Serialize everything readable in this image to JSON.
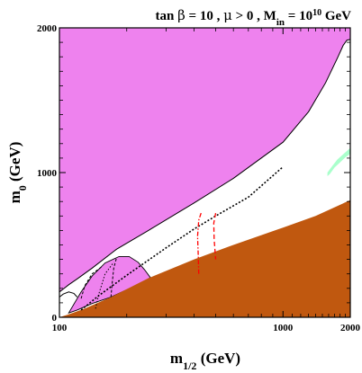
{
  "chart_data": {
    "type": "area",
    "title": {
      "prefix": "tan ",
      "beta": "β",
      "tan_beta_value": " = 10 ,  ",
      "mu": "μ",
      "mu_condition": " > 0 , M",
      "min_sub": "in",
      "min_eq": " = 10",
      "min_exp": "10",
      "unit": " GeV"
    },
    "xlabel": {
      "main": "m",
      "sub": "1/2",
      "unit": " (GeV)"
    },
    "ylabel": {
      "main": "m",
      "sub": "0",
      "unit": " (GeV)"
    },
    "xlim": [
      100,
      2000
    ],
    "ylim": [
      0,
      2000
    ],
    "x_scale": "log",
    "x_ticks": [
      {
        "value": 100,
        "label": "100"
      },
      {
        "value": 1000,
        "label": "1000"
      },
      {
        "value": 2000,
        "label": "2000"
      }
    ],
    "y_ticks": [
      {
        "value": 0,
        "label": "0"
      },
      {
        "value": 1000,
        "label": "1000"
      },
      {
        "value": 2000,
        "label": "2000"
      }
    ],
    "colors": {
      "excluded_upper": "#ee82ee",
      "excluded_lower": "#c0580f",
      "coannihilation": "#aaffcc",
      "dashed_red": "#ff0000",
      "dotted_black": "#000000"
    },
    "regions": {
      "upper_boundary": [
        [
          100,
          175
        ],
        [
          104,
          195
        ],
        [
          110,
          225
        ],
        [
          120,
          265
        ],
        [
          140,
          340
        ],
        [
          180,
          470
        ],
        [
          250,
          600
        ],
        [
          400,
          790
        ],
        [
          600,
          960
        ],
        [
          1000,
          1210
        ],
        [
          1300,
          1420
        ],
        [
          1550,
          1620
        ],
        [
          1750,
          1790
        ],
        [
          1860,
          1880
        ],
        [
          1930,
          1915
        ],
        [
          2000,
          1920
        ]
      ],
      "lower_boundary": [
        [
          100,
          0
        ],
        [
          110,
          20
        ],
        [
          130,
          60
        ],
        [
          170,
          140
        ],
        [
          250,
          270
        ],
        [
          400,
          400
        ],
        [
          600,
          500
        ],
        [
          1000,
          620
        ],
        [
          1400,
          700
        ],
        [
          2000,
          810
        ]
      ],
      "pink_lobe": [
        [
          110,
          30
        ],
        [
          125,
          175
        ],
        [
          140,
          285
        ],
        [
          160,
          375
        ],
        [
          185,
          420
        ],
        [
          205,
          420
        ],
        [
          225,
          380
        ],
        [
          240,
          330
        ],
        [
          255,
          275
        ],
        [
          235,
          235
        ],
        [
          200,
          190
        ],
        [
          170,
          140
        ],
        [
          140,
          95
        ],
        [
          120,
          50
        ]
      ],
      "small_arc_left": [
        [
          100,
          140
        ],
        [
          104,
          160
        ],
        [
          110,
          175
        ],
        [
          116,
          165
        ],
        [
          120,
          140
        ]
      ],
      "coannihilation_strip": [
        [
          1580,
          1000
        ],
        [
          1650,
          1040
        ],
        [
          1750,
          1090
        ],
        [
          1900,
          1140
        ],
        [
          2000,
          1170
        ],
        [
          2000,
          1130
        ],
        [
          1900,
          1105
        ],
        [
          1800,
          1070
        ],
        [
          1700,
          1035
        ],
        [
          1620,
          990
        ],
        [
          1580,
          975
        ]
      ]
    },
    "contours": {
      "dotted_black": [
        [
          125,
          50
        ],
        [
          150,
          150
        ],
        [
          200,
          290
        ],
        [
          300,
          480
        ],
        [
          400,
          610
        ],
        [
          500,
          700
        ],
        [
          700,
          830
        ],
        [
          1000,
          1040
        ]
      ],
      "dashed_red_left": [
        [
          430,
          720
        ],
        [
          420,
          670
        ],
        [
          415,
          560
        ],
        [
          418,
          420
        ],
        [
          420,
          300
        ]
      ],
      "dashed_red_right": [
        [
          500,
          720
        ],
        [
          490,
          650
        ],
        [
          492,
          540
        ],
        [
          500,
          400
        ]
      ],
      "dashed_black_lobe_left": [
        [
          125,
          130
        ],
        [
          130,
          220
        ],
        [
          140,
          300
        ],
        [
          155,
          350
        ]
      ],
      "dashed_black_lobe_right": [
        [
          170,
          140
        ],
        [
          172,
          230
        ],
        [
          175,
          340
        ],
        [
          180,
          410
        ]
      ],
      "dotted_black_lobe": [
        [
          145,
          60
        ],
        [
          150,
          160
        ],
        [
          160,
          300
        ],
        [
          175,
          380
        ]
      ]
    }
  }
}
